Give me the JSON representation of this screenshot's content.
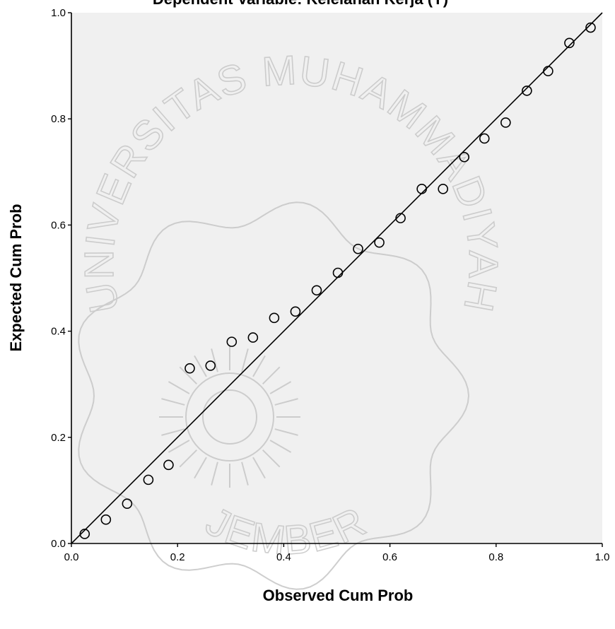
{
  "chart_data": {
    "type": "scatter",
    "title": "Dependent Variable: Kelelahan Kerja (Y)",
    "xlabel": "Observed Cum Prob",
    "ylabel": "Expected Cum Prob",
    "xlim": [
      0,
      1
    ],
    "ylim": [
      0,
      1
    ],
    "x_ticks": [
      "0.0",
      "0.2",
      "0.4",
      "0.6",
      "0.8",
      "1.0"
    ],
    "y_ticks": [
      "0.0",
      "0.2",
      "0.4",
      "0.6",
      "0.8",
      "1.0"
    ],
    "grid": false,
    "marker": "hollow-circle",
    "reference_line": {
      "from": [
        0,
        0
      ],
      "to": [
        1,
        1
      ]
    },
    "points": [
      {
        "x": 0.025,
        "y": 0.018
      },
      {
        "x": 0.065,
        "y": 0.045
      },
      {
        "x": 0.105,
        "y": 0.075
      },
      {
        "x": 0.145,
        "y": 0.12
      },
      {
        "x": 0.183,
        "y": 0.148
      },
      {
        "x": 0.223,
        "y": 0.33
      },
      {
        "x": 0.262,
        "y": 0.335
      },
      {
        "x": 0.302,
        "y": 0.38
      },
      {
        "x": 0.342,
        "y": 0.388
      },
      {
        "x": 0.382,
        "y": 0.425
      },
      {
        "x": 0.422,
        "y": 0.437
      },
      {
        "x": 0.462,
        "y": 0.477
      },
      {
        "x": 0.502,
        "y": 0.51
      },
      {
        "x": 0.54,
        "y": 0.555
      },
      {
        "x": 0.58,
        "y": 0.567
      },
      {
        "x": 0.62,
        "y": 0.613
      },
      {
        "x": 0.66,
        "y": 0.668
      },
      {
        "x": 0.7,
        "y": 0.668
      },
      {
        "x": 0.74,
        "y": 0.728
      },
      {
        "x": 0.778,
        "y": 0.763
      },
      {
        "x": 0.818,
        "y": 0.793
      },
      {
        "x": 0.858,
        "y": 0.853
      },
      {
        "x": 0.898,
        "y": 0.89
      },
      {
        "x": 0.938,
        "y": 0.943
      },
      {
        "x": 0.978,
        "y": 0.972
      }
    ]
  },
  "colors": {
    "plot_background": "#f0f0f0",
    "page_background": "#ffffff",
    "axis": "#000000",
    "marker_stroke": "#000000",
    "reference_line": "#000000",
    "watermark": "#c9c9c9"
  },
  "watermark": {
    "top_text": "UNIVERSITAS MUHAMMADIYAH",
    "bottom_text": "JEMBER"
  }
}
